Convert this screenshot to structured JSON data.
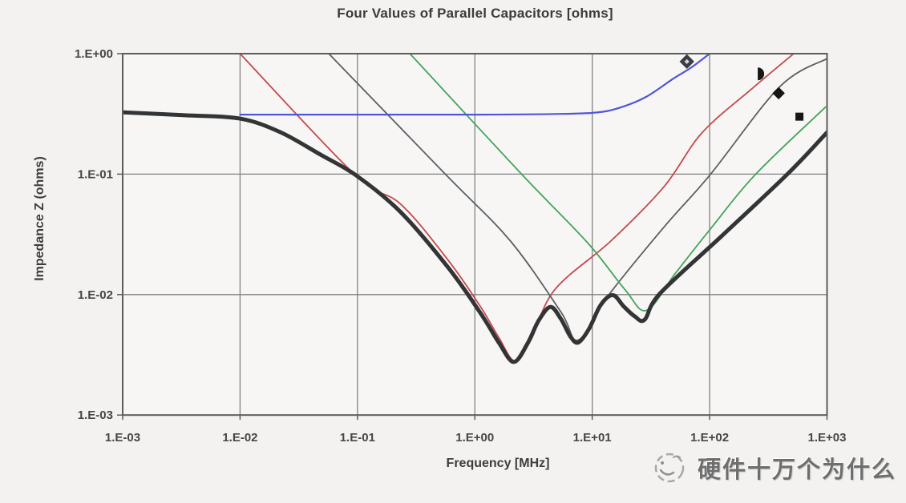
{
  "title": "Four Values of Parallel Capacitors [ohms]",
  "axes": {
    "x": {
      "title": "Frequency [MHz]",
      "scale": "log",
      "min": 0.001,
      "max": 1000,
      "ticks": [
        {
          "label": "1.E-03",
          "f": 0.001
        },
        {
          "label": "1.E-02",
          "f": 0.01
        },
        {
          "label": "1.E-01",
          "f": 0.1
        },
        {
          "label": "1.E+00",
          "f": 1
        },
        {
          "label": "1.E+01",
          "f": 10
        },
        {
          "label": "1.E+02",
          "f": 100
        },
        {
          "label": "1.E+03",
          "f": 1000
        }
      ]
    },
    "y": {
      "title": "Impedance Z (ohms)",
      "scale": "log",
      "min": 0.001,
      "max": 1,
      "ticks": [
        {
          "label": "1.E+00",
          "z": 1
        },
        {
          "label": "1.E-01",
          "z": 0.1
        },
        {
          "label": "1.E-02",
          "z": 0.01
        },
        {
          "label": "1.E-03",
          "z": 0.001
        }
      ]
    }
  },
  "colors": {
    "background": "#f3f2f0",
    "plot_background": "#f7f6f4",
    "grid": "#828282",
    "border": "#5c5c5c",
    "red_curve": "#c4494f",
    "gray_curve": "#5a5f64",
    "green_curve": "#44a35e",
    "blue_curve": "#4e56da",
    "combined_curve": "#323436",
    "marker": "#161616"
  },
  "chart_data": {
    "type": "line",
    "title": "Four Values of Parallel Capacitors [ohms]",
    "xlabel": "Frequency [MHz]",
    "ylabel": "Impedance Z (ohms)",
    "xlim": [
      0.001,
      1000
    ],
    "ylim": [
      0.001,
      1
    ],
    "grid": true,
    "legend_position": "none",
    "series": [
      {
        "name": "capacitor-red",
        "color": "#c4494f",
        "width": 1.8,
        "points": [
          [
            0.01,
            1.0
          ],
          [
            0.094,
            0.1
          ],
          [
            0.235,
            0.056
          ],
          [
            0.6,
            0.019
          ],
          [
            1.13,
            0.0078
          ],
          [
            1.6,
            0.0044
          ],
          [
            2.2,
            0.0028
          ],
          [
            3.0,
            0.0042
          ],
          [
            4.8,
            0.011
          ],
          [
            14.5,
            0.028
          ],
          [
            41,
            0.079
          ],
          [
            86,
            0.22
          ],
          [
            234,
            0.52
          ],
          [
            520,
            1.0
          ]
        ]
      },
      {
        "name": "capacitor-gray",
        "color": "#5a5f64",
        "width": 1.8,
        "points": [
          [
            0.057,
            1.0
          ],
          [
            0.56,
            0.1
          ],
          [
            2.0,
            0.028
          ],
          [
            5.4,
            0.0072
          ],
          [
            7.6,
            0.0042
          ],
          [
            13.9,
            0.01
          ],
          [
            41.5,
            0.037
          ],
          [
            102,
            0.1
          ],
          [
            394,
            0.53
          ],
          [
            1000,
            0.91
          ]
        ]
      },
      {
        "name": "capacitor-green",
        "color": "#44a35e",
        "width": 1.8,
        "points": [
          [
            0.28,
            1.0
          ],
          [
            2.5,
            0.1
          ],
          [
            9.1,
            0.027
          ],
          [
            19,
            0.011
          ],
          [
            29,
            0.0074
          ],
          [
            51,
            0.015
          ],
          [
            99,
            0.034
          ],
          [
            247,
            0.1
          ],
          [
            970,
            0.36
          ]
        ]
      },
      {
        "name": "capacitor-blue",
        "color": "#4e56da",
        "width": 2.2,
        "points": [
          [
            0.01,
            0.312
          ],
          [
            1.1,
            0.312
          ],
          [
            5.4,
            0.316
          ],
          [
            11,
            0.325
          ],
          [
            17.5,
            0.358
          ],
          [
            29,
            0.44
          ],
          [
            49,
            0.62
          ],
          [
            70,
            0.77
          ],
          [
            100,
            1.0
          ]
        ]
      },
      {
        "name": "combined-parallel-impedance",
        "color": "#323436",
        "width": 5,
        "points": [
          [
            0.001,
            0.326
          ],
          [
            0.0034,
            0.308
          ],
          [
            0.01,
            0.289
          ],
          [
            0.022,
            0.223
          ],
          [
            0.0485,
            0.145
          ],
          [
            0.1,
            0.096
          ],
          [
            0.235,
            0.048
          ],
          [
            0.6,
            0.0165
          ],
          [
            1.13,
            0.0069
          ],
          [
            1.6,
            0.004
          ],
          [
            2.14,
            0.00276
          ],
          [
            2.8,
            0.0039
          ],
          [
            3.5,
            0.0061
          ],
          [
            4.4,
            0.0079
          ],
          [
            5.4,
            0.0063
          ],
          [
            6.5,
            0.0045
          ],
          [
            7.6,
            0.004
          ],
          [
            9.4,
            0.0052
          ],
          [
            11.8,
            0.0082
          ],
          [
            15,
            0.0099
          ],
          [
            18.5,
            0.008
          ],
          [
            23,
            0.0066
          ],
          [
            28,
            0.0062
          ],
          [
            37.7,
            0.0102
          ],
          [
            126,
            0.0305
          ],
          [
            460,
            0.1
          ],
          [
            1000,
            0.222
          ]
        ]
      }
    ],
    "markers": [
      {
        "name": "diamond-dot-marker",
        "shape": "diamond-dot",
        "f": 64,
        "z": 0.86
      },
      {
        "name": "half-circle-marker",
        "shape": "half-circle",
        "f": 257,
        "z": 0.68
      },
      {
        "name": "diamond-marker",
        "shape": "diamond",
        "f": 387,
        "z": 0.47
      },
      {
        "name": "square-marker",
        "shape": "square",
        "f": 582,
        "z": 0.3
      }
    ]
  },
  "watermark": {
    "text": "硬件十万个为什么"
  }
}
